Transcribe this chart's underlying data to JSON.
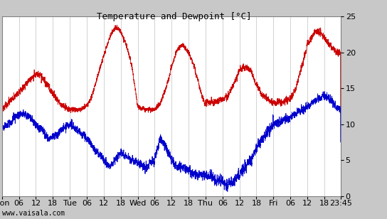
{
  "title": "Temperature and Dewpoint [°C]",
  "ylim": [
    0,
    25
  ],
  "yticks": [
    0,
    5,
    10,
    15,
    20,
    25
  ],
  "background_color": "#c8c8c8",
  "plot_bg": "#ffffff",
  "grid_color": "#c0c0c0",
  "watermark": "www.vaisala.com",
  "temp_color": "#cc0000",
  "dew_color": "#0000cc",
  "linewidth": 0.6,
  "title_fontsize": 9,
  "tick_fontsize": 8,
  "watermark_fontsize": 7
}
